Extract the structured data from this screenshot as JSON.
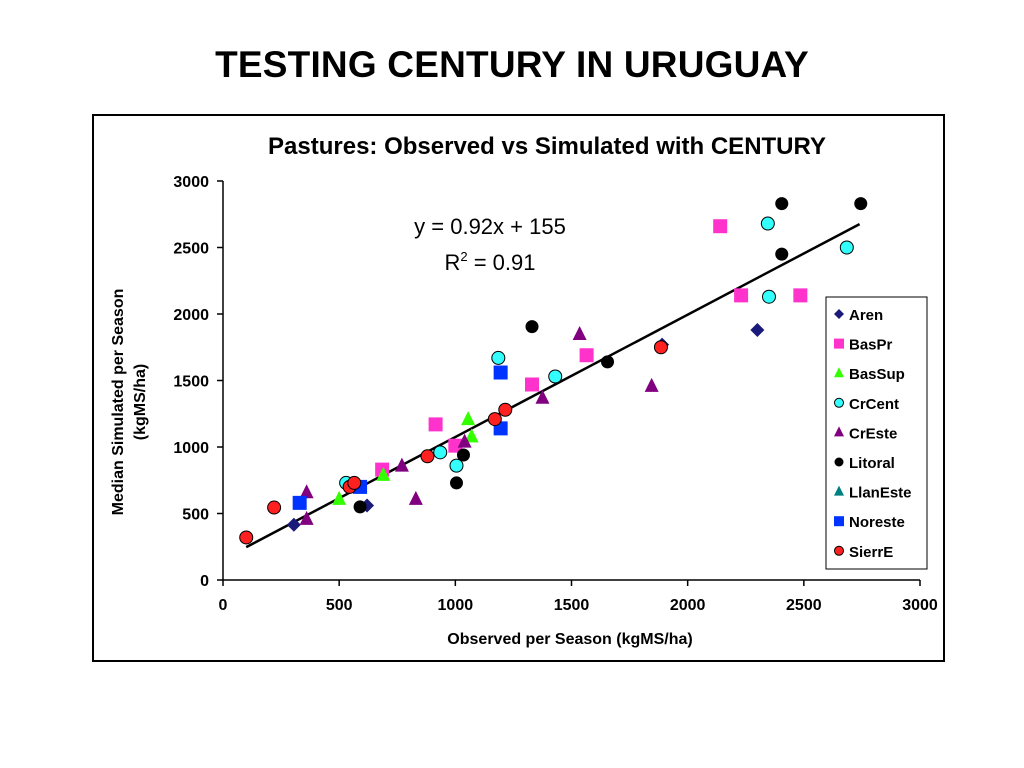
{
  "slide_title": "TESTING CENTURY IN URUGUAY",
  "chart_data": {
    "type": "scatter",
    "title": "Pastures: Observed vs Simulated with CENTURY",
    "xlabel": "Observed per Season (kgMS/ha)",
    "ylabel_line1": "Median Simulated per Season",
    "ylabel_line2": "(kgMS/ha)",
    "xlim": [
      0,
      3000
    ],
    "ylim": [
      0,
      3000
    ],
    "xticks": [
      0,
      500,
      1000,
      1500,
      2000,
      2500,
      3000
    ],
    "yticks": [
      0,
      500,
      1000,
      1500,
      2000,
      2500,
      3000
    ],
    "grid": false,
    "legend_position": "right",
    "equation": "y = 0.92x + 155",
    "r2_prefix": "R",
    "r2_exp": "2",
    "r2_value": " = 0.91",
    "trendline": {
      "slope": 0.92,
      "intercept": 155,
      "x_range": [
        100,
        2740
      ]
    },
    "series": [
      {
        "name": "Aren",
        "marker": "diamond",
        "color": "#1a1a7a",
        "points": [
          [
            305,
            415
          ],
          [
            620,
            560
          ],
          [
            1890,
            1770
          ],
          [
            2300,
            1880
          ]
        ]
      },
      {
        "name": "BasPr",
        "marker": "square",
        "color": "#ff33cc",
        "points": [
          [
            685,
            830
          ],
          [
            915,
            1170
          ],
          [
            1000,
            1010
          ],
          [
            1330,
            1470
          ],
          [
            1565,
            1690
          ],
          [
            2140,
            2660
          ],
          [
            2230,
            2140
          ],
          [
            2485,
            2140
          ]
        ]
      },
      {
        "name": "BasSup",
        "marker": "triangle",
        "color": "#33ff00",
        "points": [
          [
            500,
            610
          ],
          [
            690,
            790
          ],
          [
            1055,
            1210
          ],
          [
            1070,
            1080
          ]
        ]
      },
      {
        "name": "CrCent",
        "marker": "circle",
        "color": "#33ffff",
        "points": [
          [
            530,
            730
          ],
          [
            935,
            960
          ],
          [
            1005,
            860
          ],
          [
            1185,
            1670
          ],
          [
            1430,
            1530
          ],
          [
            2345,
            2680
          ],
          [
            2350,
            2130
          ],
          [
            2685,
            2500
          ]
        ]
      },
      {
        "name": "CrEste",
        "marker": "triangle",
        "color": "#800080",
        "points": [
          [
            360,
            660
          ],
          [
            360,
            460
          ],
          [
            770,
            860
          ],
          [
            830,
            610
          ],
          [
            1040,
            1040
          ],
          [
            1375,
            1370
          ],
          [
            1535,
            1850
          ],
          [
            1845,
            1460
          ]
        ]
      },
      {
        "name": "Litoral",
        "marker": "circle",
        "color": "#000000",
        "points": [
          [
            590,
            550
          ],
          [
            1005,
            730
          ],
          [
            1035,
            940
          ],
          [
            1330,
            1905
          ],
          [
            1655,
            1640
          ],
          [
            2405,
            2830
          ],
          [
            2405,
            2450
          ],
          [
            2745,
            2830
          ]
        ]
      },
      {
        "name": "LlanEste",
        "marker": "triangle",
        "color": "#008080",
        "points": []
      },
      {
        "name": "Noreste",
        "marker": "square",
        "color": "#0033ff",
        "points": [
          [
            330,
            580
          ],
          [
            590,
            700
          ],
          [
            1195,
            1560
          ],
          [
            1195,
            1140
          ]
        ]
      },
      {
        "name": "SierrE",
        "marker": "circle",
        "color": "#ff2020",
        "points": [
          [
            100,
            320
          ],
          [
            220,
            545
          ],
          [
            545,
            700
          ],
          [
            565,
            730
          ],
          [
            880,
            930
          ],
          [
            1170,
            1210
          ],
          [
            1215,
            1280
          ],
          [
            1885,
            1750
          ]
        ]
      }
    ]
  }
}
